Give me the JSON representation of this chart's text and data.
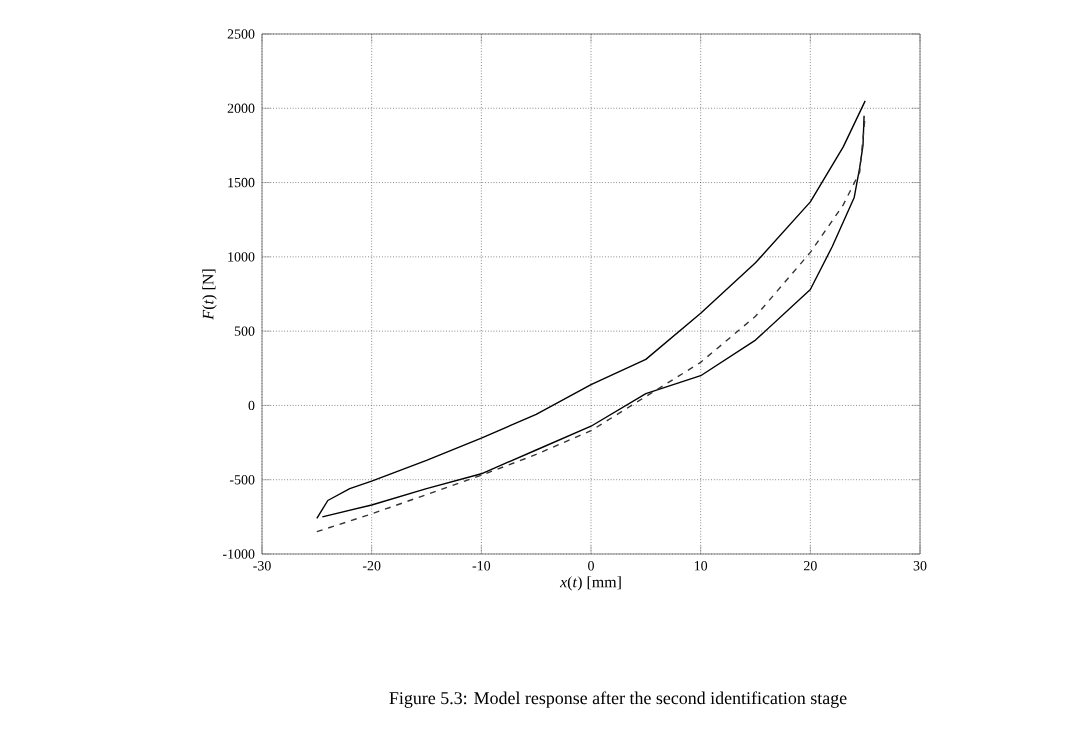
{
  "chart_data": {
    "type": "line",
    "xlabel": "*x*(*t*) [mm]",
    "ylabel": "*F*(*t*) [N]",
    "annotations": [
      "Figure 5.3: Model response after the second identification stage"
    ],
    "xlim": [
      -30,
      30
    ],
    "ylim": [
      -1000,
      2500
    ],
    "xticks": [
      -30,
      -20,
      -10,
      0,
      10,
      20,
      30
    ],
    "yticks": [
      -1000,
      -500,
      0,
      500,
      1000,
      1500,
      2000,
      2500
    ],
    "grid": true,
    "marker": "none",
    "series": [
      {
        "color": "#000000",
        "line_style": "solid",
        "x": [
          -25,
          -24,
          -22,
          -20,
          -15,
          -10,
          -5,
          0,
          5,
          10,
          15,
          20,
          23,
          25
        ],
        "values": [
          -760,
          -640,
          -560,
          -510,
          -370,
          -220,
          -60,
          140,
          310,
          620,
          960,
          1370,
          1740,
          2050
        ]
      },
      {
        "color": "#000000",
        "line_style": "solid",
        "x": [
          -24.5,
          -20,
          -15,
          -10,
          -5,
          0,
          5,
          10,
          15,
          20,
          22,
          24,
          24.5,
          24.8,
          24.9
        ],
        "values": [
          -750,
          -670,
          -560,
          -460,
          -300,
          -140,
          80,
          200,
          440,
          780,
          1070,
          1400,
          1600,
          1750,
          1950
        ]
      },
      {
        "color": "#333333",
        "line_style": "dashed",
        "x": [
          -25,
          -20,
          -15,
          -10,
          -5,
          0,
          5,
          10,
          15,
          20,
          23,
          24.5,
          25
        ],
        "values": [
          -850,
          -730,
          -600,
          -470,
          -330,
          -170,
          60,
          290,
          600,
          1030,
          1350,
          1570,
          1950
        ]
      }
    ]
  }
}
